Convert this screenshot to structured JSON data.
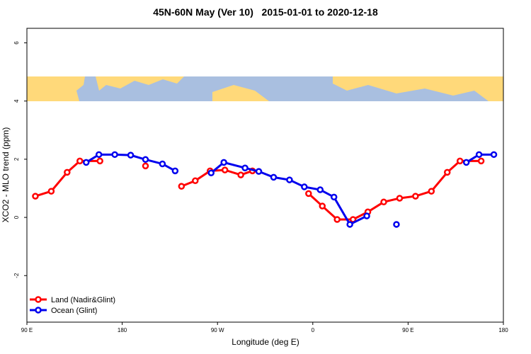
{
  "chart_data": {
    "type": "line",
    "title": "45N-60N May (Ver 10)   2015-01-01 to 2020-12-18",
    "x_label": "Longitude (deg E)",
    "y_label": "XCO2 - MLO trend (ppm)",
    "xlim": [
      90,
      540
    ],
    "ylim": [
      -3.6,
      6.5
    ],
    "xticks": [
      {
        "value": 90,
        "label": "90 E"
      },
      {
        "value": 180,
        "label": "180"
      },
      {
        "value": 270,
        "label": "90 W"
      },
      {
        "value": 360,
        "label": "0"
      },
      {
        "value": 450,
        "label": "90 E"
      },
      {
        "value": 540,
        "label": "180"
      }
    ],
    "yticks": [
      -2,
      0,
      2,
      4,
      6
    ],
    "legend": "bottom-left",
    "series": [
      {
        "name": "Land (Nadir&Glint)",
        "color": "#ff0000",
        "x": [
          98,
          113,
          128,
          140,
          159,
          180,
          202,
          220,
          236,
          249,
          263,
          277,
          292,
          303,
          330,
          356,
          369,
          383,
          398,
          412,
          427,
          442,
          457,
          472,
          487,
          499,
          519
        ],
        "values": [
          0.73,
          0.9,
          1.55,
          1.94,
          1.94,
          null,
          1.77,
          null,
          1.07,
          1.26,
          1.6,
          1.63,
          1.46,
          1.6,
          null,
          0.82,
          0.39,
          -0.07,
          -0.07,
          0.19,
          0.53,
          0.66,
          0.73,
          0.9,
          1.55,
          1.94,
          1.94
        ]
      },
      {
        "name": "Ocean (Glint)",
        "color": "#0000ee",
        "x": [
          146,
          158,
          173,
          188,
          202,
          218,
          230,
          248,
          264,
          276,
          296,
          309,
          323,
          338,
          352,
          367,
          380,
          395,
          411,
          425,
          439,
          470,
          505,
          517,
          531
        ],
        "values": [
          1.89,
          2.16,
          2.16,
          2.14,
          1.99,
          1.84,
          1.6,
          null,
          1.53,
          1.89,
          1.7,
          1.58,
          1.38,
          1.29,
          1.05,
          0.95,
          0.7,
          -0.24,
          0.05,
          null,
          -0.24,
          null,
          1.89,
          2.16,
          2.16
        ]
      }
    ]
  }
}
